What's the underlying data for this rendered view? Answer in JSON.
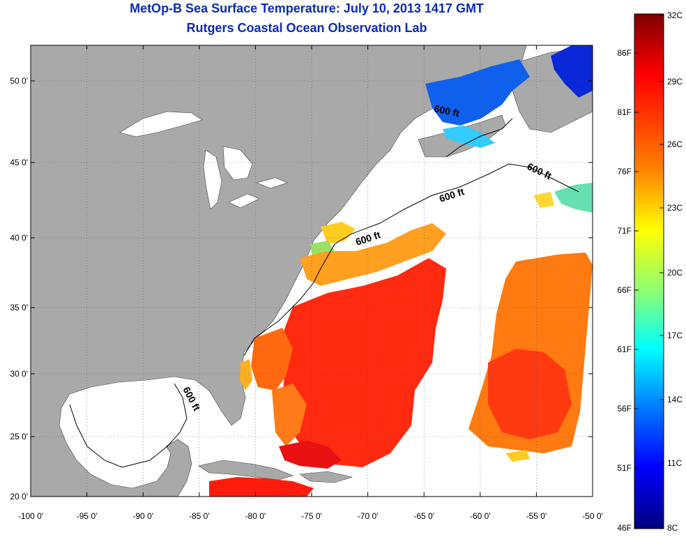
{
  "title": {
    "line1": "MetOp-B Sea Surface Temperature:  July 10, 2013 1417 GMT",
    "line2": "Rutgers Coastal Ocean Observation Lab"
  },
  "map": {
    "longitude_ticks": [
      "-100 0'",
      "-95 0'",
      "-90 0'",
      "-85 0'",
      "-80 0'",
      "-75 0'",
      "-70 0'",
      "-65 0'",
      "-60 0'",
      "-55 0'",
      "-50 0'"
    ],
    "latitude_ticks": [
      "50 0'",
      "45 0'",
      "40 0'",
      "35 0'",
      "30 0'",
      "25 0'",
      "20 0'"
    ],
    "contour_labels": [
      "600 ft",
      "600 ft",
      "600 ft",
      "600 ft",
      "600 ft"
    ],
    "colors": {
      "land": "#a9a9a9",
      "cloud_no_data": "#ffffff"
    }
  },
  "colorbar": {
    "celsius_labels": [
      "32C",
      "29C",
      "26C",
      "23C",
      "20C",
      "17C",
      "14C",
      "11C",
      "8C"
    ],
    "fahrenheit_labels": [
      "86F",
      "81F",
      "76F",
      "71F",
      "66F",
      "61F",
      "56F",
      "51F",
      "46F"
    ],
    "color_stops": [
      "#800000",
      "#ff0000",
      "#ff8000",
      "#ffff00",
      "#80ff80",
      "#00ffff",
      "#0080ff",
      "#0000ff",
      "#000080"
    ]
  }
}
